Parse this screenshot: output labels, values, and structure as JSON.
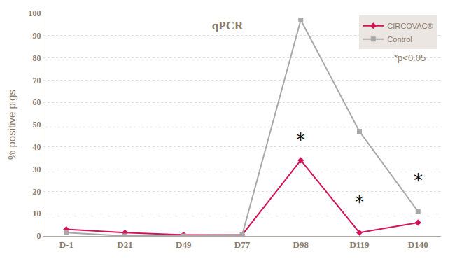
{
  "chart_data": {
    "type": "line",
    "title": "qPCR",
    "y_label": "% positive pigs",
    "categories": [
      "D-1",
      "D21",
      "D49",
      "D77",
      "D98",
      "D119",
      "D140"
    ],
    "series": [
      {
        "name": "CIRCOVAC®",
        "color": "#d4145a",
        "marker": "diamond",
        "line_style": "solid",
        "values": [
          3,
          1.5,
          0.5,
          0.5,
          34,
          1.5,
          6
        ]
      },
      {
        "name": "Control",
        "color": "#a8a8a8",
        "marker": "square",
        "line_style": "solid",
        "values": [
          1.5,
          0,
          0,
          0.5,
          97,
          47,
          11
        ]
      }
    ],
    "ylim": [
      0,
      100
    ],
    "yticks": [
      0,
      10,
      20,
      30,
      40,
      50,
      60,
      70,
      80,
      90,
      100
    ],
    "grid": true,
    "legend": "top right",
    "annotations": [
      {
        "text": "*",
        "category": "D98",
        "y": 43
      },
      {
        "text": "*",
        "category": "D119",
        "y": 15
      },
      {
        "text": "*",
        "category": "D140",
        "y": 25
      }
    ],
    "note": "*p<0.05"
  }
}
